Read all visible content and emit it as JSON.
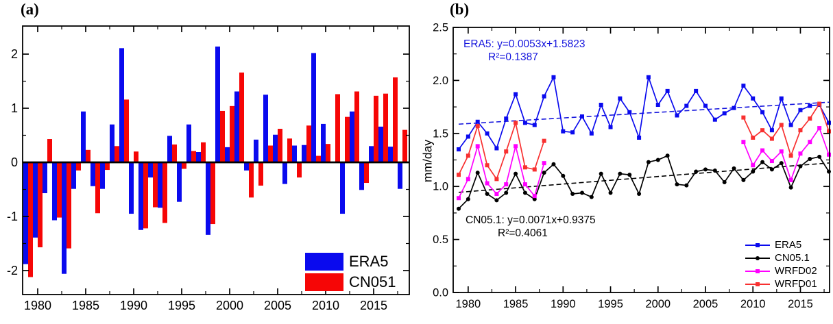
{
  "panel_a": {
    "label": "(a)",
    "legend": [
      "ERA5",
      "CN051"
    ]
  },
  "panel_b": {
    "label": "(b)",
    "ylabel": "mm/day",
    "annotations": {
      "era5": {
        "line1": "ERA5: y=0.0053x+1.5823",
        "line2": "R²=0.1387",
        "color": "#1515dd"
      },
      "cn051": {
        "line1": "CN05.1: y=0.0071x+0.9375",
        "line2": "R²=0.4061",
        "color": "#000000"
      }
    },
    "legend": [
      "ERA5",
      "CN05.1",
      "WRFD02",
      "WRFD01"
    ]
  },
  "chart_data": [
    {
      "type": "bar",
      "panel": "a",
      "title": "",
      "xlabel": "",
      "ylabel": "",
      "ylim": [
        -2.45,
        2.52
      ],
      "yticks": [
        -2,
        -1,
        0,
        1,
        2
      ],
      "ytick_labels": [
        "-2",
        "-1",
        "0",
        "1",
        "2"
      ],
      "yminor_step": 0.5,
      "xticks": [
        1980,
        1985,
        1990,
        1995,
        2000,
        2005,
        2010,
        2015
      ],
      "grid": false,
      "legend_position": "bottom-right",
      "years": [
        1979,
        1980,
        1981,
        1982,
        1983,
        1984,
        1985,
        1986,
        1987,
        1988,
        1989,
        1990,
        1991,
        1992,
        1993,
        1994,
        1995,
        1996,
        1997,
        1998,
        1999,
        2000,
        2001,
        2002,
        2003,
        2004,
        2005,
        2006,
        2007,
        2008,
        2009,
        2010,
        2011,
        2012,
        2013,
        2014,
        2015,
        2016,
        2017,
        2018
      ],
      "series": [
        {
          "name": "ERA5",
          "color": "#0a0aee",
          "values": [
            -1.88,
            -1.39,
            -0.57,
            -1.07,
            -2.06,
            -0.49,
            0.94,
            -0.44,
            -0.49,
            0.7,
            2.11,
            -0.95,
            -1.25,
            -0.28,
            -0.84,
            0.49,
            -0.73,
            0.7,
            0.19,
            -1.34,
            2.14,
            0.28,
            1.31,
            -0.15,
            0.42,
            1.25,
            0.51,
            -0.4,
            0.31,
            0.32,
            2.02,
            0.71,
            0.0,
            -0.95,
            0.94,
            -0.51,
            0.3,
            0.66,
            0.29,
            -0.49
          ]
        },
        {
          "name": "CN051",
          "color": "#f60606",
          "values": [
            -2.12,
            -1.57,
            0.43,
            -1.02,
            -1.59,
            -0.15,
            0.23,
            -0.94,
            -0.14,
            0.3,
            1.16,
            0.2,
            -1.22,
            -0.83,
            -1.12,
            0.33,
            -0.12,
            0.21,
            0.37,
            -1.14,
            0.95,
            1.04,
            1.66,
            -0.65,
            -0.43,
            0.31,
            0.62,
            0.44,
            -0.28,
            0.68,
            0.12,
            0.34,
            1.26,
            0.84,
            1.31,
            -0.38,
            1.23,
            1.27,
            1.57,
            0.6
          ]
        }
      ]
    },
    {
      "type": "line",
      "panel": "b",
      "title": "",
      "xlabel": "",
      "ylabel": "mm/day",
      "ylim": [
        0.0,
        2.5
      ],
      "yticks": [
        0.0,
        0.5,
        1.0,
        1.5,
        2.0,
        2.5
      ],
      "ytick_labels": [
        "0.0",
        "0.5",
        "1.0",
        "1.5",
        "2.0",
        "2.5"
      ],
      "yminor_step": 0.25,
      "xticks": [
        1980,
        1985,
        1990,
        1995,
        2000,
        2005,
        2010,
        2015
      ],
      "grid": false,
      "legend_position": "bottom-right",
      "years": [
        1979,
        1980,
        1981,
        1982,
        1983,
        1984,
        1985,
        1986,
        1987,
        1988,
        1989,
        1990,
        1991,
        1992,
        1993,
        1994,
        1995,
        1996,
        1997,
        1998,
        1999,
        2000,
        2001,
        2002,
        2003,
        2004,
        2005,
        2006,
        2007,
        2008,
        2009,
        2010,
        2011,
        2012,
        2013,
        2014,
        2015,
        2016,
        2017,
        2018
      ],
      "series": [
        {
          "name": "ERA5",
          "color": "#0a0aee",
          "marker": "square",
          "values": [
            1.35,
            1.47,
            1.61,
            1.5,
            1.36,
            1.64,
            1.87,
            1.6,
            1.58,
            1.85,
            2.03,
            1.52,
            1.51,
            1.66,
            1.5,
            1.77,
            1.56,
            1.83,
            1.7,
            1.46,
            2.03,
            1.77,
            1.9,
            1.67,
            1.76,
            1.9,
            1.76,
            1.63,
            1.69,
            1.74,
            1.95,
            1.83,
            1.7,
            1.53,
            1.83,
            1.58,
            1.72,
            1.76,
            1.77,
            1.6
          ]
        },
        {
          "name": "CN05.1",
          "color": "#000000",
          "marker": "circle",
          "values": [
            0.79,
            0.88,
            1.13,
            0.93,
            0.87,
            0.94,
            1.12,
            0.94,
            0.88,
            1.13,
            1.21,
            1.1,
            0.93,
            0.94,
            0.9,
            1.12,
            0.94,
            1.12,
            1.11,
            0.93,
            1.23,
            1.25,
            1.29,
            1.02,
            1.01,
            1.14,
            1.16,
            1.15,
            1.04,
            1.17,
            1.06,
            1.14,
            1.23,
            1.16,
            1.22,
            0.99,
            1.19,
            1.26,
            1.28,
            1.14
          ]
        },
        {
          "name": "WRFD02",
          "color": "#ff00ff",
          "marker": "square",
          "values": [
            0.89,
            1.07,
            1.38,
            1.03,
            0.93,
            1.02,
            1.38,
            1.02,
            0.91,
            1.22,
            null,
            null,
            null,
            null,
            null,
            null,
            null,
            null,
            null,
            null,
            null,
            null,
            null,
            null,
            null,
            null,
            null,
            null,
            null,
            null,
            1.42,
            1.2,
            1.34,
            1.24,
            1.33,
            1.06,
            1.31,
            1.42,
            1.55,
            1.3
          ]
        },
        {
          "name": "WRFD01",
          "color": "#f83030",
          "marker": "square",
          "values": [
            1.11,
            1.29,
            1.57,
            1.2,
            1.07,
            1.33,
            1.6,
            1.18,
            1.16,
            1.43,
            null,
            null,
            null,
            null,
            null,
            null,
            null,
            null,
            null,
            null,
            null,
            null,
            null,
            null,
            null,
            null,
            null,
            null,
            null,
            null,
            1.65,
            1.46,
            1.53,
            1.45,
            1.58,
            1.29,
            1.53,
            1.64,
            1.78,
            1.52
          ]
        }
      ],
      "trends": [
        {
          "series": "ERA5",
          "slope": 0.0053,
          "intercept": 1.5823,
          "r2": 0.1387,
          "color": "#1515dd"
        },
        {
          "series": "CN05.1",
          "slope": 0.0071,
          "intercept": 0.9375,
          "r2": 0.4061,
          "color": "#000000"
        }
      ]
    }
  ]
}
